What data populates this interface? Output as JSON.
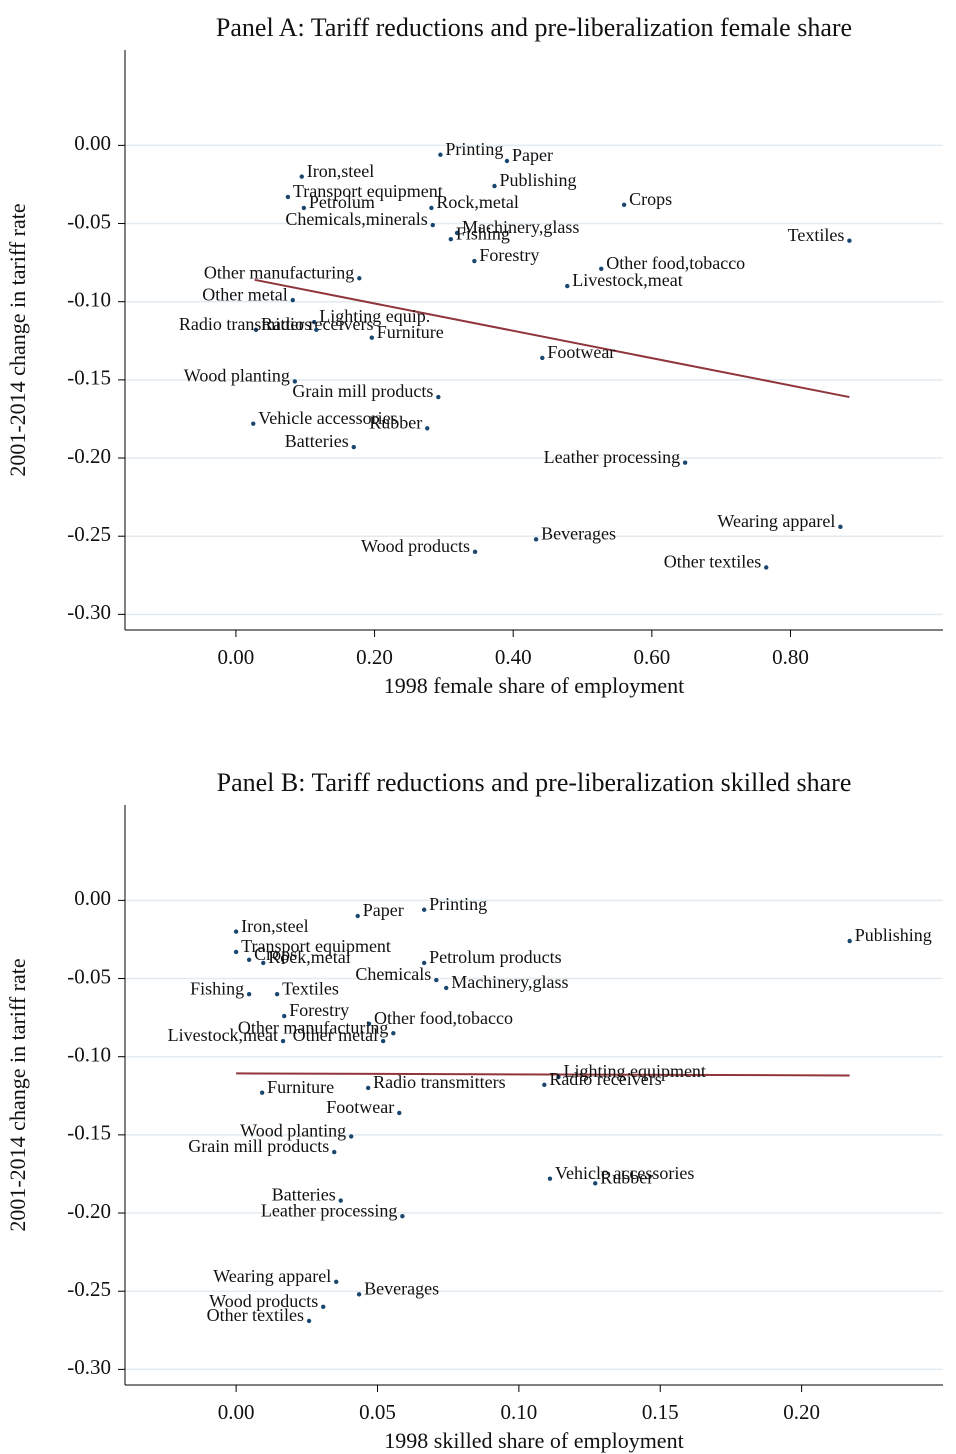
{
  "chart_data": [
    {
      "type": "scatter",
      "title": "Panel A: Tariff reductions and pre-liberalization female share",
      "xlabel": "1998 female share of employment",
      "ylabel": "2001-2014 change in tariff rate",
      "xlim": [
        -0.16,
        1.02
      ],
      "ylim": [
        -0.31,
        0.061
      ],
      "xticks": [
        {
          "value": 0,
          "label": "0.00"
        },
        {
          "value": 0.2,
          "label": "0.20"
        },
        {
          "value": 0.4,
          "label": "0.40"
        },
        {
          "value": 0.6,
          "label": "0.60"
        },
        {
          "value": 0.8,
          "label": "0.80"
        }
      ],
      "yticks": [
        {
          "value": 0,
          "label": "0.00"
        },
        {
          "value": -0.05,
          "label": "-0.05"
        },
        {
          "value": -0.1,
          "label": "-0.10"
        },
        {
          "value": -0.15,
          "label": "-0.15"
        },
        {
          "value": -0.2,
          "label": "-0.20"
        },
        {
          "value": -0.25,
          "label": "-0.25"
        },
        {
          "value": -0.3,
          "label": "-0.30"
        }
      ],
      "grid": true,
      "color": "#1a476f",
      "labels": [
        "Printing",
        "Paper",
        "Iron,steel",
        "Transport equipment",
        "Publishing",
        "Petrolum",
        "Rock,metal",
        "Crops",
        "Chemicals,minerals",
        "Machinery,glass",
        "Fishing",
        "Textiles",
        "Forestry",
        "Other food,tobacco",
        "Livestock,meat",
        "Other manufacturing",
        "Other metal",
        "Lighting equip.",
        "Radio receivers",
        "Radio transmitters",
        "Furniture",
        "Footwear",
        "Wood planting",
        "Grain mill products",
        "Vehicle accessories",
        "Rubber",
        "Batteries",
        "Leather processing",
        "Wearing apparel",
        "Beverages",
        "Wood products",
        "Other textiles"
      ],
      "x": [
        0.295,
        0.391,
        0.095,
        0.075,
        0.373,
        0.098,
        0.282,
        0.56,
        0.284,
        0.319,
        0.31,
        0.885,
        0.344,
        0.527,
        0.478,
        0.178,
        0.082,
        0.113,
        0.029,
        0.116,
        0.196,
        0.442,
        0.085,
        0.292,
        0.025,
        0.276,
        0.17,
        0.648,
        0.872,
        0.433,
        0.345,
        0.765
      ],
      "y": [
        -0.006,
        -0.01,
        -0.02,
        -0.033,
        -0.026,
        -0.04,
        -0.04,
        -0.038,
        -0.051,
        -0.056,
        -0.06,
        -0.061,
        -0.074,
        -0.079,
        -0.09,
        -0.085,
        -0.099,
        -0.113,
        -0.118,
        -0.118,
        -0.123,
        -0.136,
        -0.151,
        -0.161,
        -0.178,
        -0.181,
        -0.193,
        -0.203,
        -0.244,
        -0.252,
        -0.26,
        -0.27
      ],
      "fit": {
        "x": [
          0.027,
          0.885
        ],
        "y": [
          -0.086,
          -0.161
        ],
        "color": "#90353b"
      }
    },
    {
      "type": "scatter",
      "title": "Panel B: Tariff reductions and pre-liberalization skilled share",
      "xlabel": "1998 skilled share of employment",
      "ylabel": "2001-2014 change in tariff rate",
      "xlim": [
        -0.0393,
        0.25
      ],
      "ylim": [
        -0.31,
        0.061
      ],
      "xticks": [
        {
          "value": 0,
          "label": "0.00"
        },
        {
          "value": 0.05,
          "label": "0.05"
        },
        {
          "value": 0.1,
          "label": "0.10"
        },
        {
          "value": 0.15,
          "label": "0.15"
        },
        {
          "value": 0.2,
          "label": "0.20"
        }
      ],
      "yticks": [
        {
          "value": 0,
          "label": "0.00"
        },
        {
          "value": -0.05,
          "label": "-0.05"
        },
        {
          "value": -0.1,
          "label": "-0.10"
        },
        {
          "value": -0.15,
          "label": "-0.15"
        },
        {
          "value": -0.2,
          "label": "-0.20"
        },
        {
          "value": -0.25,
          "label": "-0.25"
        },
        {
          "value": -0.3,
          "label": "-0.30"
        }
      ],
      "grid": true,
      "color": "#1a476f",
      "labels": [
        "Printing",
        "Paper",
        "Iron,steel",
        "Publishing",
        "Transport equipment",
        "Crops",
        "Rock,metal",
        "Petrolum products",
        "Chemicals",
        "Machinery,glass",
        "Fishing",
        "Textiles",
        "Forestry",
        "Other food,tobacco",
        "Other manufacturing",
        "Livestock,meat",
        "Other metal",
        "Lighting equipment",
        "Radio transmitters",
        "Radio receivers",
        "Furniture",
        "Footwear",
        "Wood planting",
        "Grain mill products",
        "Vehicle accessories",
        "Rubber",
        "Batteries",
        "Leather processing",
        "Wearing apparel",
        "Beverages",
        "Wood products",
        "Other textiles"
      ],
      "x": [
        0.0665,
        0.043,
        0.0,
        0.217,
        0.0,
        0.0046,
        0.0096,
        0.0665,
        0.0708,
        0.0743,
        0.0046,
        0.0145,
        0.017,
        0.047,
        0.0556,
        0.0166,
        0.052,
        0.114,
        0.0467,
        0.109,
        0.0092,
        0.0577,
        0.0407,
        0.0347,
        0.111,
        0.127,
        0.037,
        0.0588,
        0.0354,
        0.0435,
        0.0308,
        0.0258
      ],
      "y": [
        -0.006,
        -0.01,
        -0.02,
        -0.026,
        -0.033,
        -0.038,
        -0.04,
        -0.04,
        -0.051,
        -0.056,
        -0.06,
        -0.06,
        -0.074,
        -0.079,
        -0.085,
        -0.09,
        -0.09,
        -0.113,
        -0.12,
        -0.118,
        -0.123,
        -0.136,
        -0.151,
        -0.161,
        -0.178,
        -0.181,
        -0.192,
        -0.202,
        -0.244,
        -0.252,
        -0.26,
        -0.269
      ],
      "fit": {
        "x": [
          0.0,
          0.217
        ],
        "y": [
          -0.1107,
          -0.112
        ],
        "color": "#90353b"
      }
    }
  ]
}
